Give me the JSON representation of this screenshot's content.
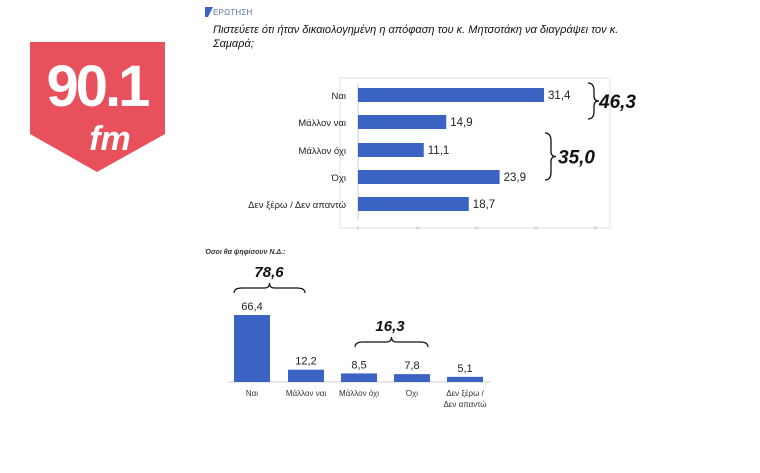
{
  "logo": {
    "number": "90.1",
    "suffix": "fm",
    "color": "#e8505b"
  },
  "header": {
    "brand": "ΕΡΩΤΗΣΗ",
    "question": "Πιστεύετε ότι ήταν δικαιολογημένη η απόφαση του κ. Μητσοτάκη να διαγράψει τον κ. Σαμαρά;"
  },
  "chart_data": [
    {
      "type": "bar",
      "orientation": "horizontal",
      "title": "Πιστεύετε ότι ήταν δικαιολογημένη η απόφαση του κ. Μητσοτάκη να διαγράψει τον κ. Σαμαρά;",
      "categories": [
        "Ναι",
        "Μάλλον ναι",
        "Μάλλον όχι",
        "Όχι",
        "Δεν ξέρω / Δεν απαντώ"
      ],
      "values": [
        31.4,
        14.9,
        11.1,
        23.9,
        18.7
      ],
      "value_labels": [
        "31,4",
        "14,9",
        "11,1",
        "23,9",
        "18,7"
      ],
      "xlim": [
        0,
        40
      ],
      "ticks": [
        "0",
        "10",
        "20",
        "30",
        "40"
      ],
      "grid": false,
      "color": "#3a63c4",
      "annotations": [
        {
          "label": "46,3",
          "categories": [
            "Ναι",
            "Μάλλον ναι"
          ]
        },
        {
          "label": "35,0",
          "categories": [
            "Μάλλον όχι",
            "Όχι"
          ]
        }
      ]
    },
    {
      "type": "bar",
      "orientation": "vertical",
      "title": "Όσοι θα ψηφίσουν Ν.Δ.:",
      "categories": [
        "Ναι",
        "Μάλλον ναι",
        "Μάλλον όχι",
        "Όχι",
        "Δεν ξέρω / Δεν απαντώ"
      ],
      "category_lines": [
        [
          "Ναι"
        ],
        [
          "Μάλλον ναι"
        ],
        [
          "Μάλλον όχι"
        ],
        [
          "Όχι"
        ],
        [
          "Δεν ξέρω /",
          "Δεν απαντώ"
        ]
      ],
      "values": [
        66.4,
        12.2,
        8.5,
        7.8,
        5.1
      ],
      "value_labels": [
        "66,4",
        "12,2",
        "8,5",
        "7,8",
        "5,1"
      ],
      "ylim": [
        0,
        70
      ],
      "grid": false,
      "color": "#3a63c4",
      "annotations": [
        {
          "label": "78,6",
          "categories": [
            "Ναι",
            "Μάλλον ναι"
          ]
        },
        {
          "label": "16,3",
          "categories": [
            "Μάλλον όχι",
            "Όχι"
          ]
        }
      ]
    }
  ]
}
